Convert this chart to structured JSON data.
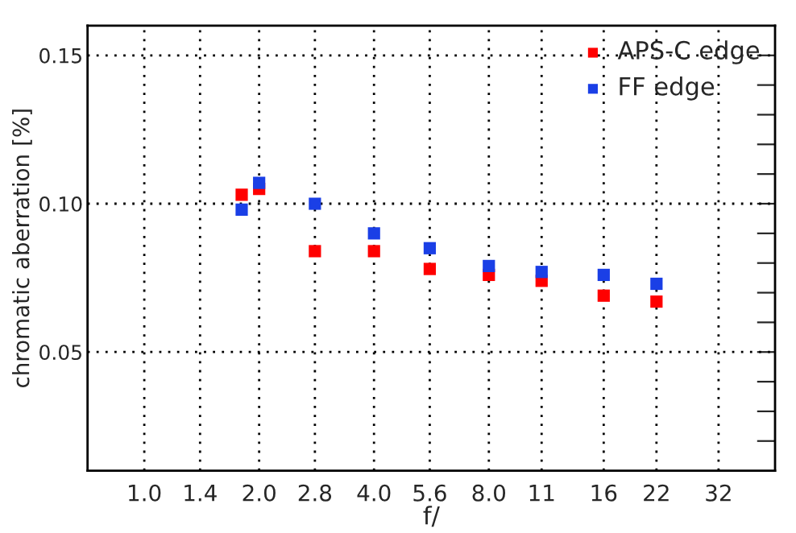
{
  "chart_data": {
    "type": "scatter",
    "xlabel": "f/",
    "ylabel": "chromatic aberration [%]",
    "log": "x",
    "xlim": [
      0.71,
      45
    ],
    "ylim": [
      0.01,
      0.16
    ],
    "xticks": [
      {
        "value": 1.0,
        "label": "1.0"
      },
      {
        "value": 1.4,
        "label": "1.4"
      },
      {
        "value": 2.0,
        "label": "2.0"
      },
      {
        "value": 2.8,
        "label": "2.8"
      },
      {
        "value": 4.0,
        "label": "4.0"
      },
      {
        "value": 5.6,
        "label": "5.6"
      },
      {
        "value": 8.0,
        "label": "8.0"
      },
      11,
      16,
      22,
      32
    ],
    "yticks": [
      {
        "value": 0.02,
        "label": null
      },
      {
        "value": 0.03,
        "label": null
      },
      {
        "value": 0.04,
        "label": null
      },
      {
        "value": 0.05,
        "label": "0.05"
      },
      {
        "value": 0.06,
        "label": null
      },
      {
        "value": 0.07,
        "label": null
      },
      {
        "value": 0.08,
        "label": null
      },
      {
        "value": 0.09,
        "label": null
      },
      {
        "value": 0.1,
        "label": "0.10"
      },
      {
        "value": 0.11,
        "label": null
      },
      {
        "value": 0.12,
        "label": null
      },
      {
        "value": 0.13,
        "label": null
      },
      {
        "value": 0.14,
        "label": null
      },
      {
        "value": 0.15,
        "label": "0.15"
      }
    ],
    "x": [
      1.8,
      2.0,
      2.8,
      4.0,
      5.6,
      8.0,
      11,
      16,
      22
    ],
    "series": [
      {
        "name": "APS-C edge",
        "color": "#ff0000",
        "values": [
          0.103,
          0.105,
          0.084,
          0.084,
          0.078,
          0.076,
          0.074,
          0.069,
          0.067
        ]
      },
      {
        "name": "FF edge",
        "color": "#1a3fe6",
        "values": [
          0.098,
          0.107,
          0.1,
          0.09,
          0.085,
          0.079,
          0.077,
          0.076,
          0.073
        ]
      }
    ],
    "marker": "square",
    "grid": true,
    "legend": "top right"
  }
}
